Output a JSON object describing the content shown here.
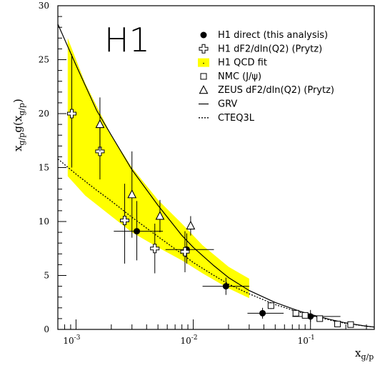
{
  "chart_data": {
    "type": "scatter",
    "logo": "H1",
    "xscale": "log",
    "xlim": [
      0.0007,
      0.35
    ],
    "ylim": [
      0,
      30
    ],
    "y_ticks": [
      0,
      5,
      10,
      15,
      20,
      25,
      30
    ],
    "x_ticks": [
      {
        "value": 0.001,
        "base": "10",
        "exp": "-3"
      },
      {
        "value": 0.01,
        "base": "10",
        "exp": "-2"
      },
      {
        "value": 0.1,
        "base": "10",
        "exp": "-1"
      }
    ],
    "ylabel": {
      "main": "x",
      "sub1": "g/p",
      "mid": "g(x",
      "sub2": "g/p",
      "close": ")"
    },
    "xlabel": {
      "main": "x",
      "sub": "g/p"
    },
    "legend": [
      {
        "key": "h1_direct",
        "marker": "filled-circle",
        "label": "H1 direct (this analysis)"
      },
      {
        "key": "h1_prytz",
        "marker": "open-cross",
        "label": "H1 dF2/dln(Q2) (Prytz)"
      },
      {
        "key": "qcd_fit",
        "marker": "yellow-band",
        "label": "H1 QCD fit"
      },
      {
        "key": "nmc",
        "marker": "open-square",
        "label": "NMC (J/ψ)"
      },
      {
        "key": "zeus",
        "marker": "open-triangle",
        "label": "ZEUS dF2/dln(Q2) (Prytz)"
      },
      {
        "key": "grv",
        "marker": "solid-line",
        "label": "GRV"
      },
      {
        "key": "cteq",
        "marker": "dotted-line",
        "label": "CTEQ3L"
      }
    ],
    "band": {
      "color": "#ffff00",
      "upper": [
        [
          0.00085,
          27.0
        ],
        [
          0.0012,
          22.8
        ],
        [
          0.002,
          18.0
        ],
        [
          0.003,
          15.0
        ],
        [
          0.005,
          12.0
        ],
        [
          0.008,
          9.8
        ],
        [
          0.012,
          7.8
        ],
        [
          0.02,
          5.8
        ],
        [
          0.03,
          4.7
        ]
      ],
      "lower": [
        [
          0.00085,
          14.2
        ],
        [
          0.0012,
          12.4
        ],
        [
          0.002,
          10.5
        ],
        [
          0.003,
          9.0
        ],
        [
          0.005,
          7.6
        ],
        [
          0.008,
          6.4
        ],
        [
          0.012,
          5.2
        ],
        [
          0.02,
          3.8
        ],
        [
          0.03,
          2.9
        ]
      ]
    },
    "series": [
      {
        "key": "h1_direct",
        "points": [
          {
            "x": 0.0033,
            "y": 9.1,
            "yerr": [
              2.7,
              2.8
            ],
            "xerr": [
              0.0012,
              0.0022
            ]
          },
          {
            "x": 0.0088,
            "y": 7.4,
            "yerr": [
              1.3,
              1.5
            ],
            "xerr": [
              0.003,
              0.0062
            ]
          },
          {
            "x": 0.019,
            "y": 4.0,
            "yerr": [
              0.8,
              0.8
            ],
            "xerr": [
              0.007,
              0.011
            ]
          },
          {
            "x": 0.039,
            "y": 1.5,
            "yerr": [
              0.5,
              0.5
            ],
            "xerr": [
              0.01,
              0.02
            ]
          },
          {
            "x": 0.1,
            "y": 1.2,
            "yerr": [
              0.5,
              0.6
            ],
            "xerr": [
              0.03,
              0.08
            ]
          }
        ]
      },
      {
        "key": "h1_prytz",
        "points": [
          {
            "x": 0.00092,
            "y": 20.0,
            "yerr": [
              5.0,
              5.5
            ]
          },
          {
            "x": 0.0016,
            "y": 16.5,
            "yerr": [
              2.6,
              2.9
            ]
          },
          {
            "x": 0.0026,
            "y": 10.1,
            "yerr": [
              4.0,
              3.4
            ]
          },
          {
            "x": 0.0047,
            "y": 7.5,
            "yerr": [
              2.3,
              2.3
            ]
          },
          {
            "x": 0.0085,
            "y": 7.2,
            "yerr": [
              1.9,
              1.9
            ]
          }
        ]
      },
      {
        "key": "zeus",
        "points": [
          {
            "x": 0.0016,
            "y": 19.0,
            "yerr": [
              2.5,
              2.5
            ]
          },
          {
            "x": 0.003,
            "y": 12.5,
            "yerr": [
              4.0,
              4.0
            ]
          },
          {
            "x": 0.0052,
            "y": 10.5,
            "yerr": [
              1.5,
              1.5
            ]
          },
          {
            "x": 0.0095,
            "y": 9.6,
            "yerr": [
              0.9,
              0.9
            ]
          }
        ]
      },
      {
        "key": "nmc",
        "points": [
          {
            "x": 0.046,
            "y": 2.2,
            "yerr": [
              0.3,
              0.3
            ]
          },
          {
            "x": 0.075,
            "y": 1.5,
            "yerr": [
              0.3,
              0.3
            ]
          },
          {
            "x": 0.09,
            "y": 1.3,
            "yerr": [
              0.25,
              0.25
            ]
          },
          {
            "x": 0.12,
            "y": 1.0,
            "yerr": [
              0.2,
              0.2
            ]
          },
          {
            "x": 0.17,
            "y": 0.5,
            "yerr": [
              0.15,
              0.15
            ]
          },
          {
            "x": 0.22,
            "y": 0.45,
            "yerr": [
              0.15,
              0.15
            ]
          }
        ]
      }
    ],
    "curves": [
      {
        "key": "grv",
        "style": "solid",
        "points": [
          [
            0.0007,
            28.3
          ],
          [
            0.001,
            24.5
          ],
          [
            0.0015,
            20.3
          ],
          [
            0.002,
            18.0
          ],
          [
            0.003,
            14.8
          ],
          [
            0.005,
            11.5
          ],
          [
            0.008,
            8.7
          ],
          [
            0.01,
            7.6
          ],
          [
            0.015,
            5.9
          ],
          [
            0.02,
            4.8
          ],
          [
            0.03,
            3.6
          ],
          [
            0.05,
            2.5
          ],
          [
            0.08,
            1.7
          ],
          [
            0.1,
            1.4
          ],
          [
            0.15,
            0.9
          ],
          [
            0.2,
            0.6
          ],
          [
            0.3,
            0.3
          ],
          [
            0.35,
            0.22
          ]
        ]
      },
      {
        "key": "cteq",
        "style": "dotted",
        "points": [
          [
            0.0007,
            15.8
          ],
          [
            0.001,
            14.4
          ],
          [
            0.0015,
            12.9
          ],
          [
            0.002,
            11.9
          ],
          [
            0.003,
            10.4
          ],
          [
            0.005,
            8.6
          ],
          [
            0.008,
            7.0
          ],
          [
            0.01,
            6.2
          ],
          [
            0.015,
            5.0
          ],
          [
            0.02,
            4.2
          ],
          [
            0.03,
            3.3
          ],
          [
            0.05,
            2.3
          ],
          [
            0.08,
            1.6
          ],
          [
            0.1,
            1.3
          ],
          [
            0.15,
            0.85
          ],
          [
            0.2,
            0.55
          ],
          [
            0.3,
            0.3
          ],
          [
            0.35,
            0.22
          ]
        ]
      }
    ]
  }
}
